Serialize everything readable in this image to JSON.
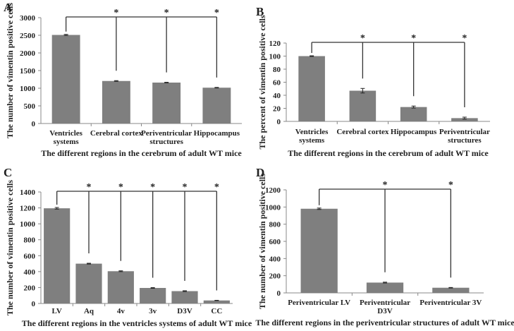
{
  "chart_data": [
    {
      "panel": "A",
      "type": "bar",
      "categories": [
        [
          "Ventricles",
          "systems"
        ],
        [
          "Cerebral cortex"
        ],
        [
          "Periventricular",
          "structures"
        ],
        [
          "Hippocampus"
        ]
      ],
      "values": [
        2510,
        1205,
        1160,
        1015
      ],
      "errors": [
        15,
        10,
        8,
        8
      ],
      "ylabel": "The number of vimentin positive cells",
      "xlabel": "The different regions in the cerebrum of adult WT mice",
      "ylim": [
        0,
        3000
      ],
      "yticks": [
        0,
        500,
        1000,
        1500,
        2000,
        2500,
        3000
      ],
      "significance": {
        "reference": 0,
        "marker": "*",
        "compared": [
          1,
          2,
          3
        ]
      },
      "grid": false,
      "bar_color": "#7f7f7f"
    },
    {
      "panel": "B",
      "type": "bar",
      "categories": [
        [
          "Ventricles",
          "systems"
        ],
        [
          "Cerebral cortex"
        ],
        [
          "Hippocampus"
        ],
        [
          "Periventricular",
          "structures"
        ]
      ],
      "values": [
        100,
        47,
        22,
        5
      ],
      "errors": [
        0.5,
        3.5,
        1.5,
        1.5
      ],
      "ylabel": "The percent of vimentin positive cells",
      "xlabel": "The different regions in the cerebrum of adult WT mice",
      "ylim": [
        0,
        120
      ],
      "yticks": [
        0,
        20,
        40,
        60,
        80,
        100,
        120
      ],
      "significance": {
        "reference": 0,
        "marker": "*",
        "compared": [
          1,
          2,
          3
        ]
      },
      "grid": false,
      "bar_color": "#7f7f7f"
    },
    {
      "panel": "C",
      "type": "bar",
      "categories": [
        [
          "LV"
        ],
        [
          "Aq"
        ],
        [
          "4v"
        ],
        [
          "3v"
        ],
        [
          "D3V"
        ],
        [
          "CC"
        ]
      ],
      "values": [
        1195,
        500,
        405,
        195,
        155,
        38
      ],
      "errors": [
        10,
        5,
        5,
        4,
        5,
        2
      ],
      "ylabel": "The number of vimentin positive cells",
      "xlabel": "The different regions in the ventricles systems of adult WT mice",
      "ylim": [
        0,
        1400
      ],
      "yticks": [
        0,
        200,
        400,
        600,
        800,
        1000,
        1200,
        1400
      ],
      "significance": {
        "reference": 0,
        "marker": "*",
        "compared": [
          1,
          2,
          3,
          4,
          5
        ]
      },
      "grid": false,
      "bar_color": "#7f7f7f"
    },
    {
      "panel": "D",
      "type": "bar",
      "categories": [
        [
          "Periventricular LV"
        ],
        [
          "Periventricular",
          "D3V"
        ],
        [
          "Periventricular 3V"
        ]
      ],
      "values": [
        980,
        120,
        60
      ],
      "errors": [
        8,
        5,
        3
      ],
      "ylabel": "The number of vimentin positive cells",
      "xlabel": "The different regions in the periventricular structures of adult WT mice",
      "ylim": [
        0,
        1200
      ],
      "yticks": [
        0,
        200,
        400,
        600,
        800,
        1000,
        1200
      ],
      "significance": {
        "reference": 0,
        "marker": "*",
        "compared": [
          1,
          2
        ]
      },
      "grid": false,
      "bar_color": "#7f7f7f"
    }
  ]
}
